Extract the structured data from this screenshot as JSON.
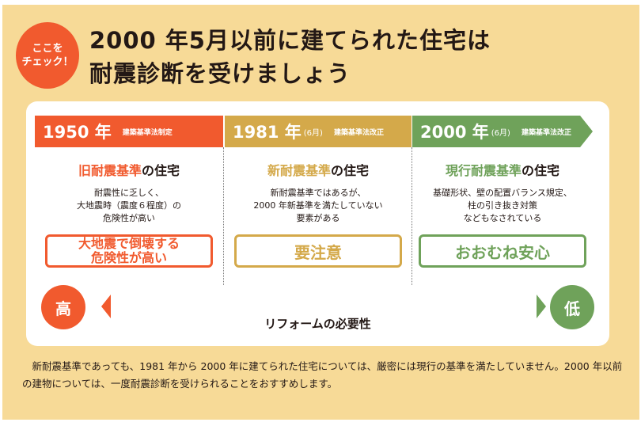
{
  "badge": {
    "line1": "ここを",
    "line2": "チェック！"
  },
  "title": {
    "line1": "2000 年5月以前に建てられた住宅は",
    "line2": "耐震診断を受けましょう"
  },
  "columns": [
    {
      "year": "1950 年",
      "month": "",
      "law": "建築基準法制定",
      "title_accent": "旧耐震基準",
      "title_rest": "の住宅",
      "desc": [
        "耐震性に乏しく、",
        "大地震時（震度６程度）の",
        "危険性が高い"
      ],
      "verdict": [
        "大地震で倒壊する",
        "危険性が高い"
      ],
      "color": "#f15a2e"
    },
    {
      "year": "1981 年",
      "month": "(6月)",
      "law": "建築基準法改正",
      "title_accent": "新耐震基準",
      "title_rest": "の住宅",
      "desc": [
        "新耐震基準ではあるが、",
        "2000 年新基準を満たしていない",
        "要素がある"
      ],
      "verdict": [
        "要注意"
      ],
      "color": "#d4a94a"
    },
    {
      "year": "2000 年",
      "month": "(6月)",
      "law": "建築基準法改正",
      "title_accent": "現行耐震基準",
      "title_rest": "の住宅",
      "desc": [
        "基礎形状、壁の配置バランス規定、",
        "柱の引き抜き対策",
        "などもなされている"
      ],
      "verdict": [
        "おおむね安心"
      ],
      "color": "#6fa25a"
    }
  ],
  "scale": {
    "high": "高",
    "low": "低",
    "label": "リフォームの必要性",
    "high_color": "#f15a2e",
    "low_color": "#6fa25a"
  },
  "note": "新耐震基準であっても、1981 年から 2000 年に建てられた住宅については、厳密には現行の基準を満たしていません。2000 年以前の建物については、一度耐震診断を受けられることをおすすめします。",
  "colors": {
    "background": "#f7da97",
    "card": "#ffffff"
  }
}
